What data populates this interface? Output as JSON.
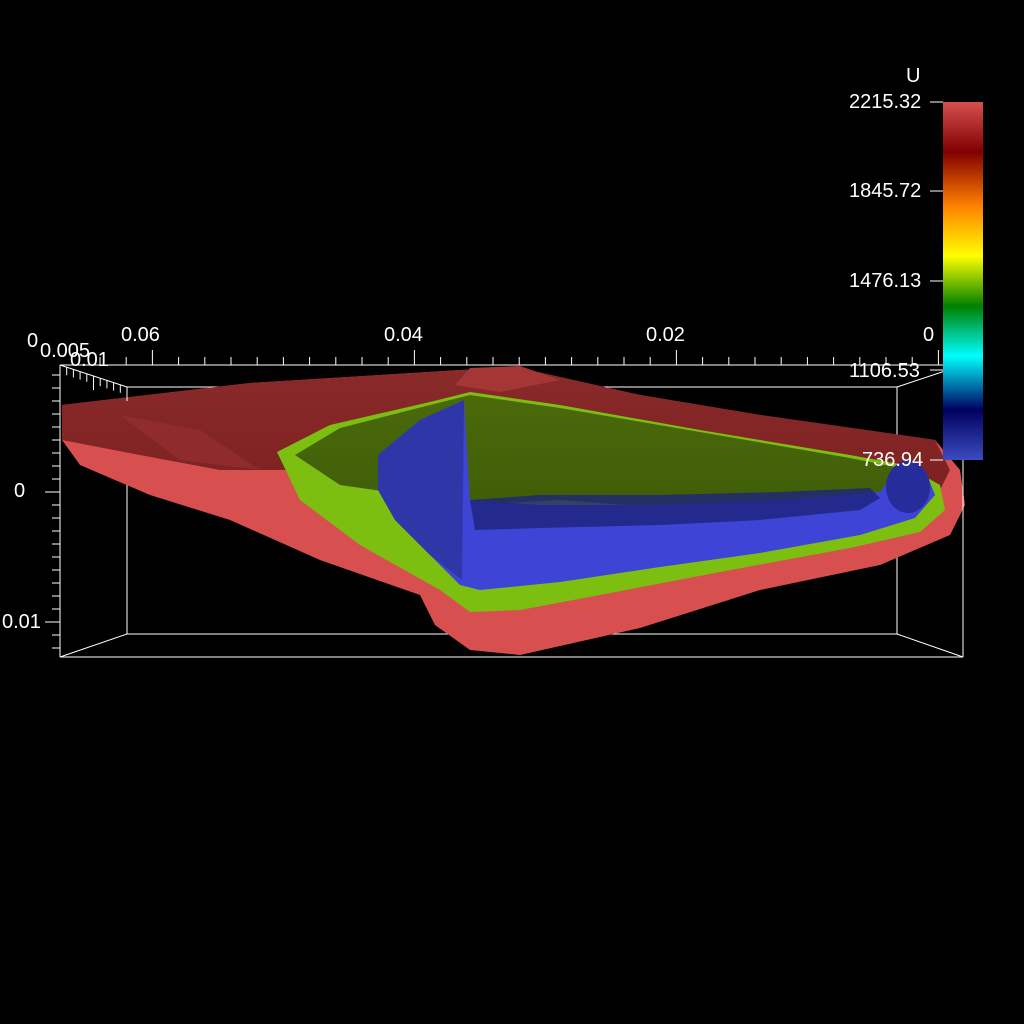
{
  "colorbar": {
    "title": "U",
    "labels": [
      "2215.32",
      "1845.72",
      "1476.13",
      "1106.53",
      "736.94"
    ],
    "stops": [
      "#3b4cc0",
      "#000060",
      "#00ffff",
      "#008000",
      "#ffff00",
      "#ff8000",
      "#800000",
      "#d84f4f"
    ]
  },
  "axes": {
    "x_ticks": [
      "0.06",
      "0.04",
      "0.02",
      "0"
    ],
    "y_ticks": [
      "0",
      "0.01"
    ],
    "z_ticks": [
      "0",
      "0.005",
      "0.01"
    ]
  },
  "surfaces": [
    {
      "name": "outer-contour",
      "color": "#d84f4f"
    },
    {
      "name": "middle-contour",
      "color": "#7cbf10"
    },
    {
      "name": "inner-contour",
      "color": "#3e44d6"
    }
  ]
}
